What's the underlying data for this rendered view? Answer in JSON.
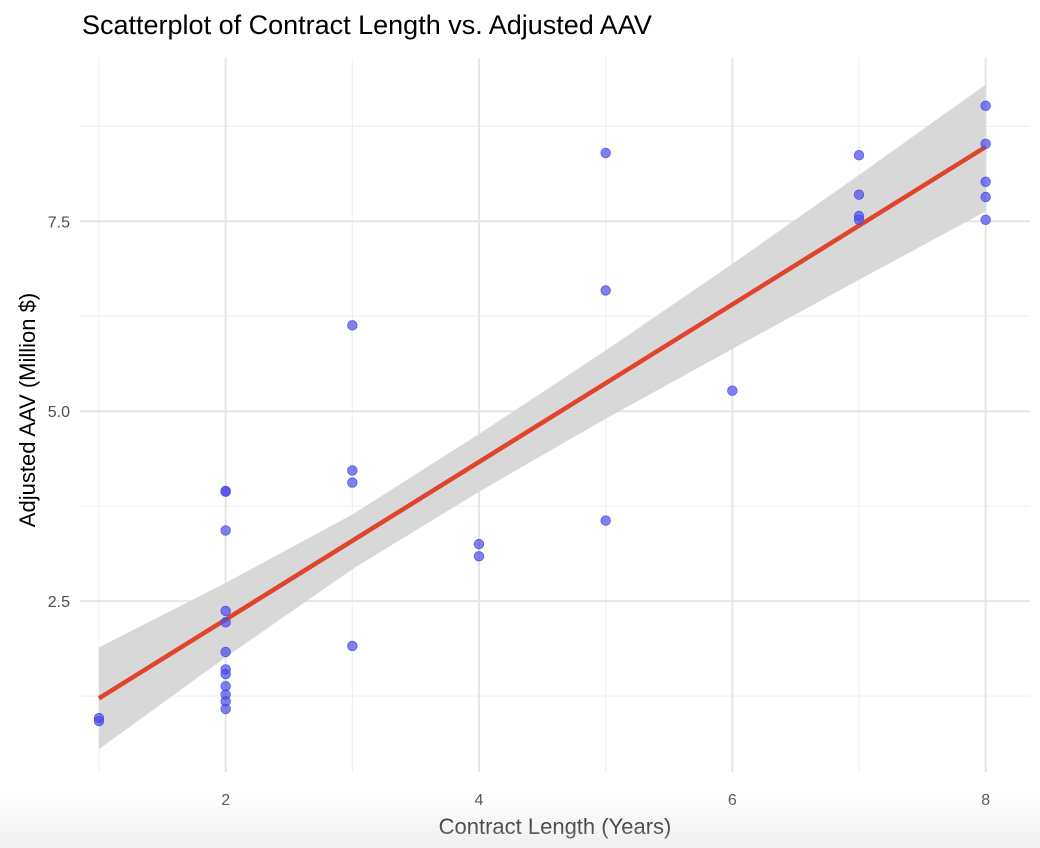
{
  "chart_data": {
    "type": "scatter",
    "title": "Scatterplot of Contract Length vs. Adjusted AAV",
    "xlabel": "Contract Length (Years)",
    "ylabel": "Adjusted AAV (Million $)",
    "xlim": [
      0.85,
      8.35
    ],
    "ylim": [
      0.25,
      9.65
    ],
    "x_ticks": [
      2,
      4,
      6,
      8
    ],
    "x_tick_labels": [
      "2",
      "4",
      "6",
      "8"
    ],
    "y_ticks": [
      2.5,
      5.0,
      7.5
    ],
    "y_tick_labels": [
      "2.5",
      "5.0",
      "7.5"
    ],
    "grid": true,
    "legend": "none",
    "point_color": "#4a4ae8",
    "points": [
      {
        "x": 1,
        "y": 0.96
      },
      {
        "x": 1,
        "y": 0.92
      },
      {
        "x": 2,
        "y": 3.95
      },
      {
        "x": 2,
        "y": 3.94
      },
      {
        "x": 2,
        "y": 3.43
      },
      {
        "x": 2,
        "y": 2.37
      },
      {
        "x": 2,
        "y": 2.22
      },
      {
        "x": 2,
        "y": 1.83
      },
      {
        "x": 2,
        "y": 1.6
      },
      {
        "x": 2,
        "y": 1.54
      },
      {
        "x": 2,
        "y": 1.38
      },
      {
        "x": 2,
        "y": 1.27
      },
      {
        "x": 2,
        "y": 1.18
      },
      {
        "x": 2,
        "y": 1.08
      },
      {
        "x": 3,
        "y": 6.13
      },
      {
        "x": 3,
        "y": 4.22
      },
      {
        "x": 3,
        "y": 4.06
      },
      {
        "x": 3,
        "y": 1.91
      },
      {
        "x": 4,
        "y": 3.25
      },
      {
        "x": 4,
        "y": 3.09
      },
      {
        "x": 5,
        "y": 8.4
      },
      {
        "x": 5,
        "y": 6.59
      },
      {
        "x": 5,
        "y": 3.56
      },
      {
        "x": 6,
        "y": 5.27
      },
      {
        "x": 7,
        "y": 8.37
      },
      {
        "x": 7,
        "y": 7.85
      },
      {
        "x": 7,
        "y": 7.57
      },
      {
        "x": 7,
        "y": 7.52
      },
      {
        "x": 8,
        "y": 9.02
      },
      {
        "x": 8,
        "y": 8.52
      },
      {
        "x": 8,
        "y": 8.02
      },
      {
        "x": 8,
        "y": 7.82
      },
      {
        "x": 8,
        "y": 7.52
      }
    ],
    "trend": {
      "type": "linear",
      "color": "#e0442c",
      "band_color": "#d6d6d6",
      "x": [
        1,
        2,
        3,
        4,
        5,
        6,
        7,
        8
      ],
      "fit": [
        1.22,
        2.25,
        3.28,
        4.32,
        5.35,
        6.38,
        7.42,
        8.48
      ],
      "lower": [
        0.55,
        1.76,
        2.92,
        3.94,
        4.9,
        5.82,
        6.73,
        7.63
      ],
      "upper": [
        1.89,
        2.74,
        3.64,
        4.7,
        5.8,
        6.94,
        8.11,
        9.3
      ]
    }
  }
}
